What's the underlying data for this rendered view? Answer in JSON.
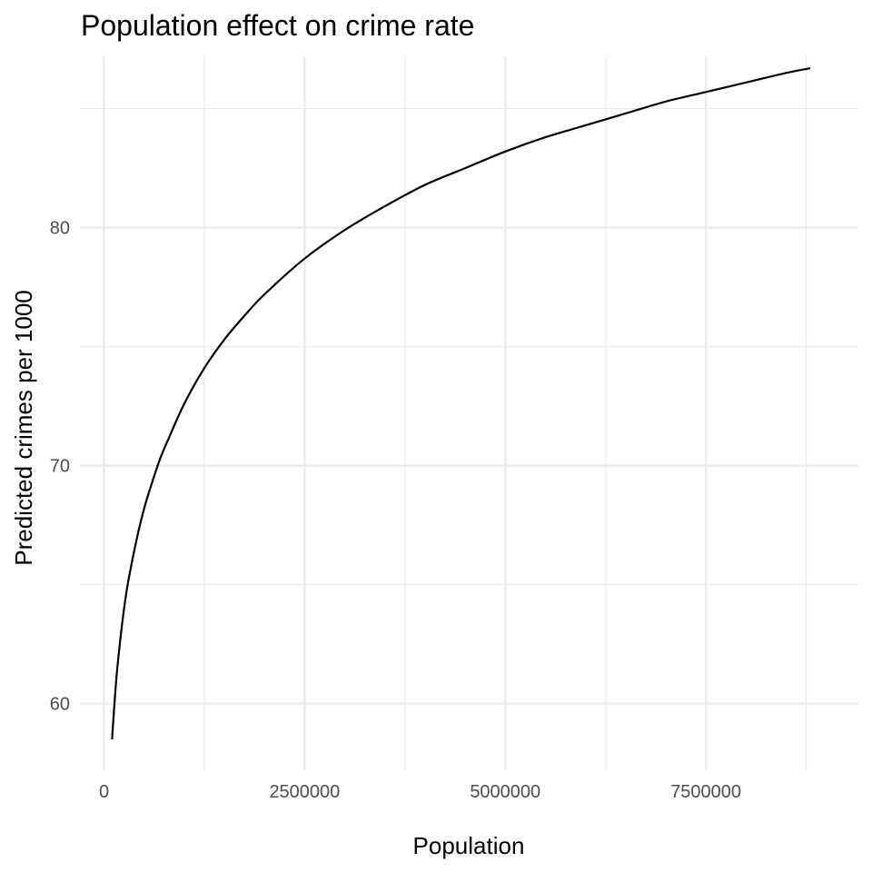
{
  "chart_data": {
    "type": "line",
    "title": "Population effect on crime rate",
    "xlabel": "Population",
    "ylabel": "Predicted crimes per 1000",
    "xlim": [
      -300000,
      9400000
    ],
    "ylim": [
      57.2,
      87.2
    ],
    "x_ticks": [
      {
        "value": 0,
        "label": "0"
      },
      {
        "value": 2500000,
        "label": "2500000"
      },
      {
        "value": 5000000,
        "label": "5000000"
      },
      {
        "value": 7500000,
        "label": "7500000"
      }
    ],
    "x_minor_ticks": [
      1250000,
      3750000,
      6250000,
      8750000
    ],
    "y_ticks": [
      {
        "value": 60,
        "label": "60"
      },
      {
        "value": 70,
        "label": "70"
      },
      {
        "value": 80,
        "label": "80"
      }
    ],
    "y_minor_ticks": [
      65,
      75,
      85
    ],
    "grid": true,
    "legend": "none",
    "series": [
      {
        "x": [
          100000,
          150000,
          200000,
          250000,
          300000,
          400000,
          500000,
          600000,
          700000,
          800000,
          1000000,
          1250000,
          1500000,
          1750000,
          2000000,
          2500000,
          3000000,
          3500000,
          4000000,
          4500000,
          5000000,
          5500000,
          6000000,
          6500000,
          7000000,
          7500000,
          8000000,
          8500000,
          8800000
        ],
        "y": [
          58.5,
          60.9,
          62.6,
          64.0,
          65.1,
          66.8,
          68.2,
          69.3,
          70.3,
          71.1,
          72.6,
          74.1,
          75.3,
          76.3,
          77.2,
          78.7,
          79.9,
          80.9,
          81.8,
          82.5,
          83.2,
          83.8,
          84.3,
          84.8,
          85.3,
          85.7,
          86.1,
          86.5,
          86.7
        ]
      }
    ]
  }
}
